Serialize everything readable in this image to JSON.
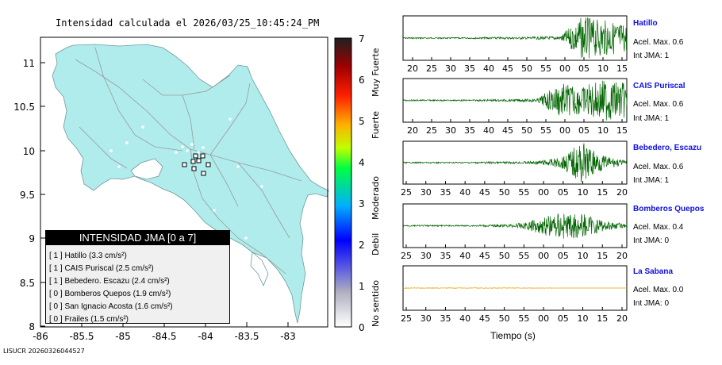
{
  "map": {
    "title": "Intensidad calculada el 2026/03/25_10:45:24_PM",
    "x_ticks": [
      "-86",
      "-85.5",
      "-85",
      "-84.5",
      "-84",
      "-83.5",
      "-83"
    ],
    "y_ticks": [
      "8",
      "8.5",
      "9",
      "9.5",
      "10",
      "10.5",
      "11"
    ],
    "footer": "LISUCR 20260326044527"
  },
  "colorbar": {
    "ticks": [
      "0",
      "1",
      "2",
      "3",
      "4",
      "5",
      "6",
      "7"
    ],
    "labels": [
      "No sentido",
      "Debil",
      "Moderado",
      "Fuerte",
      "Muy Fuerte"
    ]
  },
  "legend": {
    "title": "INTENSIDAD JMA [0 a 7]",
    "rows": [
      {
        "text": "[ 1 ]  Hatillo (3.3 cm/s²)"
      },
      {
        "text": "[ 1 ]  CAIS Puriscal (2.5 cm/s²)"
      },
      {
        "text": "[ 1 ]  Bebedero. Escazu (2.4 cm/s²)"
      },
      {
        "text": "[ 0 ]  Bomberos Quepos (1.9 cm/s²)"
      },
      {
        "text": "[ 0 ]  San Ignacio Acosta (1.6 cm/s²)"
      },
      {
        "text": "[ 0 ]  Frailes (1.5 cm/s²)"
      }
    ]
  },
  "traces": [
    {
      "name": "Hatillo",
      "acel": "Acel. Max. 0.6",
      "int": "Int JMA: 1",
      "color": "#006400",
      "ticks": [
        "20",
        "25",
        "30",
        "35",
        "40",
        "45",
        "50",
        "55",
        "00",
        "05",
        "10",
        "15"
      ]
    },
    {
      "name": "CAIS Puriscal",
      "acel": "Acel. Max. 0.6",
      "int": "Int JMA: 1",
      "color": "#006400",
      "ticks": [
        "20",
        "25",
        "30",
        "35",
        "40",
        "45",
        "50",
        "55",
        "00",
        "05",
        "10",
        "15"
      ]
    },
    {
      "name": "Bebedero, Escazu",
      "acel": "Acel. Max. 0.6",
      "int": "Int JMA: 1",
      "color": "#006400",
      "ticks": [
        "25",
        "30",
        "35",
        "40",
        "45",
        "50",
        "55",
        "00",
        "05",
        "10",
        "15",
        "20"
      ]
    },
    {
      "name": "Bomberos Quepos",
      "acel": "Acel. Max. 0.4",
      "int": "Int JMA: 0",
      "color": "#006400",
      "ticks": [
        "25",
        "30",
        "35",
        "40",
        "45",
        "50",
        "55",
        "00",
        "05",
        "10",
        "15",
        "20"
      ]
    },
    {
      "name": "La Sabana",
      "acel": "Acel. Max. 0.0",
      "int": "Int JMA: 0",
      "color": "#f0a000",
      "ticks": [
        "25",
        "30",
        "35",
        "40",
        "45",
        "50",
        "55",
        "00",
        "05",
        "10",
        "15",
        "20"
      ]
    }
  ],
  "xlabel": "Tiempo (s)",
  "chart_data": {
    "type": "line",
    "title": "Intensidad calculada el 2026/03/25_10:45:24_PM",
    "xlabel": "Tiempo (s)",
    "series": [
      {
        "name": "Hatillo",
        "values": [
          0.02,
          0.02,
          0.02,
          0.02,
          0.03,
          0.03,
          0.04,
          0.05,
          0.6,
          0.5,
          0.4
        ]
      },
      {
        "name": "CAIS Puriscal",
        "values": [
          0.02,
          0.02,
          0.02,
          0.02,
          0.03,
          0.03,
          0.05,
          0.5,
          0.4,
          0.6,
          0.5
        ]
      },
      {
        "name": "Bebedero, Escazu",
        "values": [
          0.02,
          0.02,
          0.02,
          0.02,
          0.03,
          0.03,
          0.05,
          0.15,
          0.6,
          0.2,
          0.05
        ]
      },
      {
        "name": "Bomberos Quepos",
        "values": [
          0.02,
          0.02,
          0.02,
          0.02,
          0.03,
          0.05,
          0.2,
          0.4,
          0.35,
          0.15,
          0.05
        ]
      },
      {
        "name": "La Sabana",
        "values": [
          0.01,
          0.01,
          0.01,
          0.01,
          0.01,
          0.01,
          0.01,
          0.0,
          0.0,
          0.0,
          0.0
        ]
      }
    ]
  }
}
